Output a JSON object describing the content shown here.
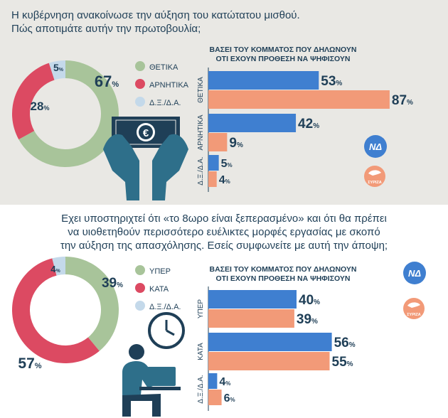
{
  "panels": [
    {
      "question_lines": [
        "Η κυβέρνηση ανακοίνωσε την αύξηση του κατώτατου μισθού.",
        "Πώς αποτιμάτε αυτήν την πρωτοβουλία;"
      ],
      "bars_header_lines": [
        "ΒΑΣΕΙ ΤΟΥ ΚΟΜΜΑΤΟΣ ΠΟΥ ΔΗΛΩΝΟΥΝ",
        "ΟΤΙ ΕΧΟΥΝ ΠΡΟΘΕΣΗ ΝΑ ΨΗΦΙΣΟΥΝ"
      ],
      "nd_label": "ΝΔ",
      "syriza_label": "ΣΥΡΙΖΑ",
      "icon": "hands-holding-euro-banknote-icon"
    },
    {
      "question_lines": [
        "Εχει υποστηριχτεί ότι «το 8ωρο είναι ξεπερασμένο» και ότι θα πρέπει",
        "να υιοθετηθούν περισσότερο ευέλικτες μορφές εργασίας με σκοπό",
        "την αύξηση της απασχόλησης. Εσείς συμφωνείτε με αυτή την άποψη;"
      ],
      "bars_header_lines": [
        "ΒΑΣΕΙ ΤΟΥ ΚΟΜΜΑΤΟΣ ΠΟΥ ΔΗΛΩΝΟΥΝ",
        "ΟΤΙ ΕΧΟΥΝ ΠΡΟΘΕΣΗ ΝΑ ΨΗΦΙΣΟΥΝ"
      ],
      "nd_label": "ΝΔ",
      "syriza_label": "ΣΥΡΙΖΑ",
      "icon": "clock-and-person-at-laptop-icon"
    }
  ],
  "colors": {
    "positive": "#a8c49a",
    "negative": "#dc4a62",
    "neutral": "#c4d9ea",
    "nd": "#3f7fd0",
    "syriza": "#f29a78",
    "text_dark": "#1f3f57"
  },
  "chart_data": [
    {
      "type": "pie",
      "variant": "donut",
      "categories": [
        "ΘΕΤΙΚΑ",
        "ΑΡΝΗΤΙΚΑ",
        "Δ.Ξ./Δ.Α."
      ],
      "values": [
        67,
        28,
        5
      ],
      "unit": "%"
    },
    {
      "type": "bar",
      "orientation": "horizontal",
      "categories": [
        "ΘΕΤΙΚΑ",
        "ΑΡΝΗΤΙΚΑ",
        "Δ.Ξ./Δ.Α."
      ],
      "series": [
        {
          "name": "ΝΔ",
          "values": [
            53,
            42,
            5
          ]
        },
        {
          "name": "ΣΥΡΙΖΑ",
          "values": [
            87,
            9,
            4
          ]
        }
      ],
      "unit": "%",
      "xlim": [
        0,
        100
      ]
    },
    {
      "type": "pie",
      "variant": "donut",
      "categories": [
        "ΥΠΕΡ",
        "ΚΑΤΑ",
        "Δ.Ξ./Δ.Α."
      ],
      "values": [
        39,
        57,
        4
      ],
      "unit": "%"
    },
    {
      "type": "bar",
      "orientation": "horizontal",
      "categories": [
        "ΥΠΕΡ",
        "ΚΑΤΑ",
        "Δ.Ξ./Δ.Α."
      ],
      "series": [
        {
          "name": "ΝΔ",
          "values": [
            40,
            56,
            4
          ]
        },
        {
          "name": "ΣΥΡΙΖΑ",
          "values": [
            39,
            55,
            6
          ]
        }
      ],
      "unit": "%",
      "xlim": [
        0,
        100
      ]
    }
  ]
}
